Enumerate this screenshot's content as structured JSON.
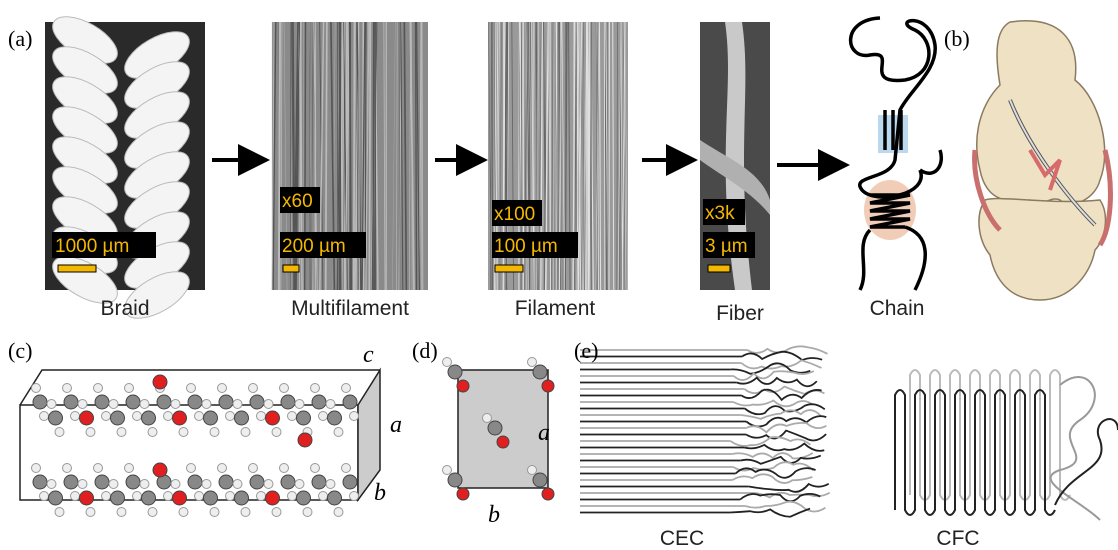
{
  "panels": {
    "a": {
      "label": "(a)",
      "stages": [
        {
          "name": "Braid",
          "scale_bar": "1000 µm"
        },
        {
          "name": "Multifilament",
          "magnification": "x60",
          "scale_bar": "200 µm"
        },
        {
          "name": "Filament",
          "magnification": "x100",
          "scale_bar": "100 µm"
        },
        {
          "name": "Fiber",
          "magnification": "x3k",
          "scale_bar": "3 µm"
        },
        {
          "name": "Chain"
        }
      ]
    },
    "b": {
      "label": "(b)"
    },
    "c": {
      "label": "(c)",
      "axes": [
        "c",
        "a",
        "b"
      ]
    },
    "d": {
      "label": "(d)",
      "axes": [
        "a",
        "b"
      ]
    },
    "e": {
      "label": "(e)",
      "diagrams": [
        "CEC",
        "CFC"
      ]
    }
  }
}
